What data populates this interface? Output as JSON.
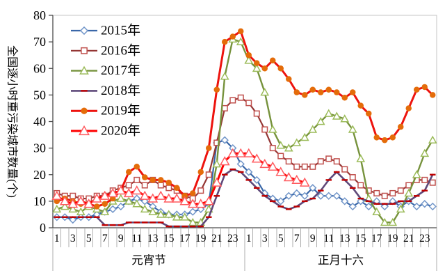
{
  "chart_data": {
    "type": "line",
    "title": "",
    "ylabel": "全国逐小时重污染城市数量(个)",
    "ylim": [
      0,
      80
    ],
    "ytick_step": 10,
    "ytick_labels": [
      "0",
      "10",
      "20",
      "30",
      "40",
      "50",
      "60",
      "70",
      "80"
    ],
    "grid": false,
    "legend_position": "upper-left-inside",
    "x": {
      "days": [
        {
          "label": "元宵节",
          "hours": 24
        },
        {
          "label": "正月十六",
          "hours": 24
        }
      ],
      "hour_tick_labels": [
        "1",
        "3",
        "5",
        "7",
        "9",
        "11",
        "13",
        "15",
        "17",
        "19",
        "21",
        "23"
      ]
    },
    "colors": {
      "axis": "#4d4d4d",
      "minor_tick": "#a6a6a6",
      "plot_border": "#c6c6c6",
      "text": "#000000"
    },
    "series": [
      {
        "name": "2015年",
        "line_color": "#3a67a8",
        "marker": "diamond",
        "marker_edge": "#7296c9",
        "marker_fill": "#ffffff",
        "line_width": 2.2,
        "marker_size": 4.6,
        "values": [
          4,
          4,
          3,
          4,
          4,
          5,
          6,
          7,
          8,
          10,
          11,
          10,
          8,
          6,
          5,
          5,
          5,
          6,
          7,
          9,
          32,
          33,
          30,
          24,
          21,
          18,
          13,
          11,
          10,
          12,
          13,
          12,
          15,
          12,
          12,
          12,
          10,
          8,
          10,
          8,
          10,
          8,
          10,
          8,
          10,
          8,
          9,
          8
        ]
      },
      {
        "name": "2016年",
        "line_color": "#943634",
        "marker": "square",
        "marker_edge": "#c0504d",
        "marker_fill": "#ffffff",
        "line_width": 2.2,
        "marker_size": 4.6,
        "values": [
          13,
          12,
          12,
          11,
          11,
          12,
          12,
          14,
          15,
          16,
          18,
          16,
          18,
          16,
          15,
          14,
          12,
          11,
          14,
          20,
          32,
          45,
          48,
          49,
          47,
          43,
          37,
          30,
          27,
          25,
          23,
          23,
          23,
          25,
          26,
          25,
          22,
          19,
          16,
          14,
          13,
          12,
          13,
          14,
          16,
          18,
          18,
          17
        ]
      },
      {
        "name": "2017年",
        "line_color": "#76923c",
        "marker": "triangle",
        "marker_edge": "#9bbb59",
        "marker_fill": "#ffffff",
        "line_width": 2.4,
        "marker_size": 5,
        "values": [
          7,
          8,
          7,
          6,
          8,
          7,
          6,
          10,
          11,
          10,
          9,
          7,
          6,
          5,
          5,
          4,
          4,
          2,
          2,
          7,
          24,
          57,
          71,
          70,
          63,
          60,
          51,
          37,
          31,
          30,
          32,
          34,
          37,
          40,
          43,
          42,
          41,
          37,
          26,
          11,
          6,
          2,
          2,
          7,
          13,
          20,
          28,
          33
        ]
      },
      {
        "name": "2018年",
        "line_color": "#5f497a",
        "marker": "dash",
        "marker_edge": "#c00000",
        "marker_fill": "#c00000",
        "line_width": 2.6,
        "marker_size": 4.5,
        "values": [
          4,
          4,
          4,
          4,
          4,
          4,
          1,
          1,
          1,
          2,
          2,
          2,
          2,
          2,
          0.5,
          0.5,
          0.5,
          0.5,
          0.5,
          4,
          12,
          20,
          22,
          21,
          18,
          15,
          12,
          10,
          8,
          7,
          8,
          10,
          11,
          14,
          18,
          21,
          18,
          15,
          11,
          10,
          9,
          9,
          9,
          10,
          10,
          12,
          14,
          20
        ]
      },
      {
        "name": "2019年",
        "line_color": "#ed130e",
        "marker": "circle",
        "marker_edge": "#e46c0a",
        "marker_fill": "#e46c0a",
        "line_width": 3,
        "marker_size": 5,
        "values": [
          10,
          11,
          10,
          9,
          9,
          8,
          9,
          11,
          14,
          21,
          23,
          19,
          18,
          18,
          17,
          15,
          12,
          13,
          21,
          30,
          52,
          70,
          72,
          74,
          65,
          62,
          60,
          63,
          60,
          56,
          51,
          50,
          52,
          51,
          52,
          51,
          49,
          51,
          46,
          43,
          34,
          33,
          34,
          38,
          45,
          52,
          53,
          50
        ]
      },
      {
        "name": "2020年",
        "line_color": "#ff0000",
        "marker": "triangle",
        "marker_edge": "#ff5a5f",
        "marker_fill": "#ffffff",
        "line_width": 3,
        "marker_size": 6,
        "values": [
          12,
          10,
          9,
          10,
          9,
          11,
          12,
          13,
          14,
          13,
          14,
          12,
          11,
          12,
          11,
          11,
          10,
          9,
          9,
          10,
          17,
          25,
          28,
          28,
          28,
          26,
          24,
          23,
          21,
          19,
          18,
          17,
          null,
          null,
          null,
          null,
          null,
          null,
          null,
          null,
          null,
          null,
          null,
          null,
          null,
          null,
          null,
          null
        ]
      }
    ]
  }
}
